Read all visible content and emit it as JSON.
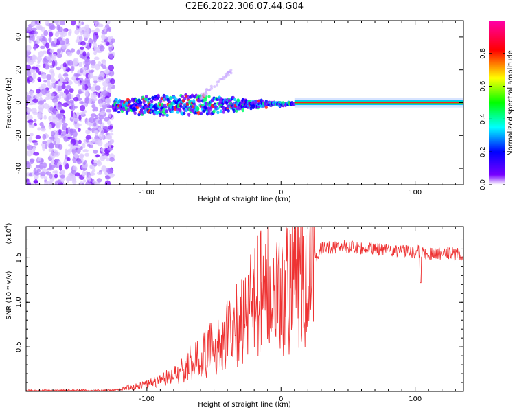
{
  "title": "C2E6.2022.306.07.44.G04",
  "chart_data": [
    {
      "type": "heatmap",
      "xlabel": "Height of straight line (km)",
      "ylabel": "Frequency (Hz)",
      "xlim": [
        -190,
        136
      ],
      "ylim": [
        -50,
        50
      ],
      "xticks": [
        -100,
        0,
        100
      ],
      "yticks": [
        -40,
        -20,
        0,
        20,
        40
      ],
      "colorbar": {
        "label": "Normalized spectral amplitude",
        "range": [
          0,
          1
        ],
        "ticks": [
          "0.0",
          "0.2",
          "0.4",
          "0.6",
          "0.8"
        ],
        "colors": [
          "#ffffff",
          "#7700ff",
          "#0000ff",
          "#00ffff",
          "#00ff00",
          "#ffff00",
          "#ff0000",
          "#ff00aa"
        ]
      },
      "features": [
        {
          "name": "noise",
          "x_range": [
            -190,
            -125
          ],
          "freq_range": [
            -50,
            50
          ],
          "amplitude": 0.15
        },
        {
          "name": "transition",
          "x_range": [
            -125,
            10
          ],
          "freq_range": [
            -7,
            5
          ],
          "amplitude": 0.4
        },
        {
          "name": "stable_line",
          "x_range": [
            10,
            136
          ],
          "freq": 0,
          "amplitude": 0.9
        }
      ]
    },
    {
      "type": "line",
      "xlabel": "Height of straight line (km)",
      "ylabel": "SNR (10 * v/v)",
      "yscale_label": "(x10",
      "yscale_exp": "4",
      "xlim": [
        -190,
        136
      ],
      "ylim": [
        0,
        1.85
      ],
      "xticks": [
        -100,
        0,
        100
      ],
      "yticks": [
        "0.5",
        "1.0",
        "1.5"
      ],
      "color": "#ee3333",
      "series": [
        {
          "x": [
            -190,
            -150,
            -125,
            -115,
            -100,
            -90,
            -80,
            -70,
            -60,
            -50,
            -40,
            -30,
            -20,
            -15,
            -10,
            -5,
            0,
            5,
            10,
            15,
            20,
            25,
            30,
            40,
            50,
            60,
            70,
            80,
            90,
            100,
            105,
            110,
            120,
            130,
            136
          ],
          "y": [
            0.01,
            0.01,
            0.01,
            0.04,
            0.08,
            0.12,
            0.18,
            0.3,
            0.38,
            0.5,
            0.65,
            0.8,
            1.05,
            1.1,
            1.2,
            1.15,
            1.05,
            1.15,
            1.25,
            1.3,
            1.4,
            1.5,
            1.6,
            1.62,
            1.63,
            1.61,
            1.6,
            1.6,
            1.58,
            1.57,
            1.56,
            1.55,
            1.55,
            1.54,
            1.53
          ]
        }
      ]
    }
  ]
}
